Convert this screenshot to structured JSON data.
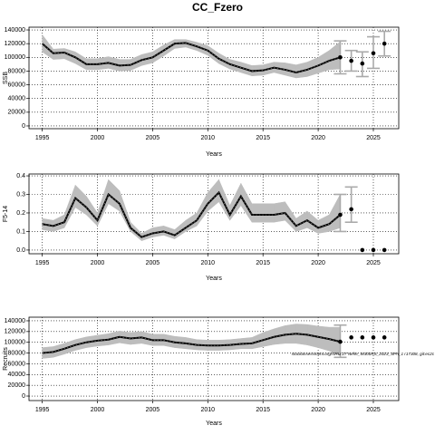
{
  "title": "CC_Fzero",
  "chart_data": [
    {
      "type": "line",
      "ylabel": "SSB",
      "xlabel": "Years",
      "xlim": [
        1993.8,
        2027.3
      ],
      "xticks": [
        1995,
        2000,
        2005,
        2010,
        2015,
        2020,
        2025
      ],
      "ylim": [
        -4000,
        144000
      ],
      "yticks": [
        0,
        20000,
        40000,
        60000,
        80000,
        100000,
        120000,
        140000
      ],
      "grid": true,
      "color": "#000000",
      "band_color": "#bdbdbd",
      "bar_color": "#aaaaaa",
      "x": [
        1995,
        1996,
        1997,
        1998,
        1999,
        2000,
        2001,
        2002,
        2003,
        2004,
        2005,
        2006,
        2007,
        2008,
        2009,
        2010,
        2011,
        2012,
        2013,
        2014,
        2015,
        2016,
        2017,
        2018,
        2019,
        2020,
        2021,
        2022
      ],
      "values": [
        120000,
        106000,
        107000,
        100000,
        90000,
        90000,
        92000,
        88000,
        89000,
        96000,
        100000,
        110000,
        120000,
        121000,
        116000,
        110000,
        98000,
        90000,
        85000,
        80000,
        81000,
        85000,
        82000,
        78000,
        82000,
        88000,
        95000,
        100000
      ],
      "lower": [
        108000,
        97000,
        98000,
        91000,
        82000,
        82000,
        84000,
        80000,
        81000,
        88000,
        92000,
        102000,
        113000,
        115000,
        110000,
        103000,
        91000,
        83000,
        78000,
        73000,
        74000,
        78000,
        74000,
        70000,
        72000,
        77000,
        82000,
        83000
      ],
      "upper": [
        133000,
        112000,
        113000,
        108000,
        98000,
        98000,
        101000,
        97000,
        97000,
        104000,
        108000,
        118000,
        126000,
        126000,
        122000,
        117000,
        106000,
        97000,
        93000,
        88000,
        89000,
        93000,
        92000,
        89000,
        93000,
        100000,
        110000,
        123000
      ],
      "forecast": {
        "x": [
          2022,
          2023,
          2024,
          2025,
          2026
        ],
        "values": [
          100000,
          95000,
          91000,
          106000,
          120000
        ],
        "lower": [
          76000,
          80000,
          72000,
          84000,
          102000
        ],
        "upper": [
          124000,
          110000,
          108000,
          130000,
          138000
        ]
      }
    },
    {
      "type": "line",
      "ylabel": "F5-14",
      "xlabel": "Years",
      "xlim": [
        1993.8,
        2027.3
      ],
      "xticks": [
        1995,
        2000,
        2005,
        2010,
        2015,
        2020,
        2025
      ],
      "ylim": [
        -0.02,
        0.41
      ],
      "yticks": [
        {
          "value": 0,
          "label": "0.0"
        },
        0.1,
        0.2,
        0.3,
        0.4
      ],
      "grid": true,
      "color": "#000000",
      "band_color": "#bdbdbd",
      "bar_color": "#aaaaaa",
      "x": [
        1995,
        1996,
        1997,
        1998,
        1999,
        2000,
        2001,
        2002,
        2003,
        2004,
        2005,
        2006,
        2007,
        2008,
        2009,
        2010,
        2011,
        2012,
        2013,
        2014,
        2015,
        2016,
        2017,
        2018,
        2019,
        2020,
        2021,
        2022
      ],
      "values": [
        0.14,
        0.13,
        0.15,
        0.28,
        0.23,
        0.16,
        0.3,
        0.25,
        0.12,
        0.07,
        0.09,
        0.1,
        0.08,
        0.12,
        0.16,
        0.25,
        0.31,
        0.19,
        0.29,
        0.19,
        0.19,
        0.19,
        0.2,
        0.13,
        0.16,
        0.12,
        0.14,
        0.19
      ],
      "lower": [
        0.11,
        0.1,
        0.12,
        0.23,
        0.19,
        0.13,
        0.25,
        0.21,
        0.1,
        0.05,
        0.07,
        0.08,
        0.06,
        0.1,
        0.13,
        0.21,
        0.26,
        0.16,
        0.24,
        0.15,
        0.15,
        0.15,
        0.16,
        0.1,
        0.12,
        0.09,
        0.1,
        0.12
      ],
      "upper": [
        0.17,
        0.16,
        0.19,
        0.35,
        0.29,
        0.2,
        0.38,
        0.32,
        0.15,
        0.09,
        0.12,
        0.13,
        0.11,
        0.16,
        0.2,
        0.31,
        0.38,
        0.24,
        0.36,
        0.25,
        0.25,
        0.25,
        0.26,
        0.17,
        0.21,
        0.16,
        0.19,
        0.3
      ],
      "forecast": {
        "x": [
          2022,
          2023,
          2024,
          2025,
          2026
        ],
        "values": [
          0.19,
          0.22,
          0,
          0,
          0
        ],
        "lower": [
          0.1,
          0.15,
          null,
          null,
          null
        ],
        "upper": [
          0.3,
          0.34,
          null,
          null,
          null
        ]
      }
    },
    {
      "type": "line",
      "ylabel": "Recruits",
      "xlabel": "Years",
      "annotation": "stockassessment.org/NRU 27 Nehe_W300RS_2023_SPA_1 r17308, git:ec2c",
      "xlim": [
        1993.8,
        2027.3
      ],
      "xticks": [
        1995,
        2000,
        2005,
        2010,
        2015,
        2020,
        2025
      ],
      "ylim": [
        -8400,
        146700
      ],
      "yticks": [
        0,
        20000,
        40000,
        60000,
        80000,
        100000,
        120000,
        140000
      ],
      "grid": true,
      "color": "#000000",
      "band_color": "#bdbdbd",
      "bar_color": "#aaaaaa",
      "x": [
        1995,
        1996,
        1997,
        1998,
        1999,
        2000,
        2001,
        2002,
        2003,
        2004,
        2005,
        2006,
        2007,
        2008,
        2009,
        2010,
        2011,
        2012,
        2013,
        2014,
        2015,
        2016,
        2017,
        2018,
        2019,
        2020,
        2021,
        2022
      ],
      "values": [
        80000,
        82000,
        88000,
        95000,
        100000,
        103000,
        105000,
        110000,
        107000,
        109000,
        104000,
        104000,
        100000,
        98000,
        95000,
        94000,
        94000,
        95000,
        97000,
        98000,
        104000,
        110000,
        114000,
        116000,
        114000,
        110000,
        106000,
        101000
      ],
      "lower": [
        70000,
        72000,
        78000,
        85000,
        90000,
        93000,
        95000,
        99000,
        96000,
        98000,
        94000,
        94000,
        90000,
        88000,
        86000,
        85000,
        85000,
        86000,
        88000,
        88000,
        92000,
        96000,
        98000,
        98000,
        95000,
        90000,
        84000,
        76000
      ],
      "upper": [
        90000,
        92000,
        98000,
        105000,
        110000,
        113000,
        116000,
        121000,
        118000,
        120000,
        115000,
        115000,
        111000,
        109000,
        105000,
        104000,
        104000,
        105000,
        107000,
        109000,
        118000,
        125000,
        131000,
        134000,
        133000,
        130000,
        128000,
        128000
      ],
      "forecast": {
        "x": [
          2022,
          2023,
          2024,
          2025,
          2026
        ],
        "values": [
          101000,
          109000,
          109000,
          109000,
          109000
        ],
        "lower": [
          72000,
          null,
          null,
          null,
          null
        ],
        "upper": [
          132000,
          null,
          null,
          null,
          null
        ]
      }
    }
  ]
}
